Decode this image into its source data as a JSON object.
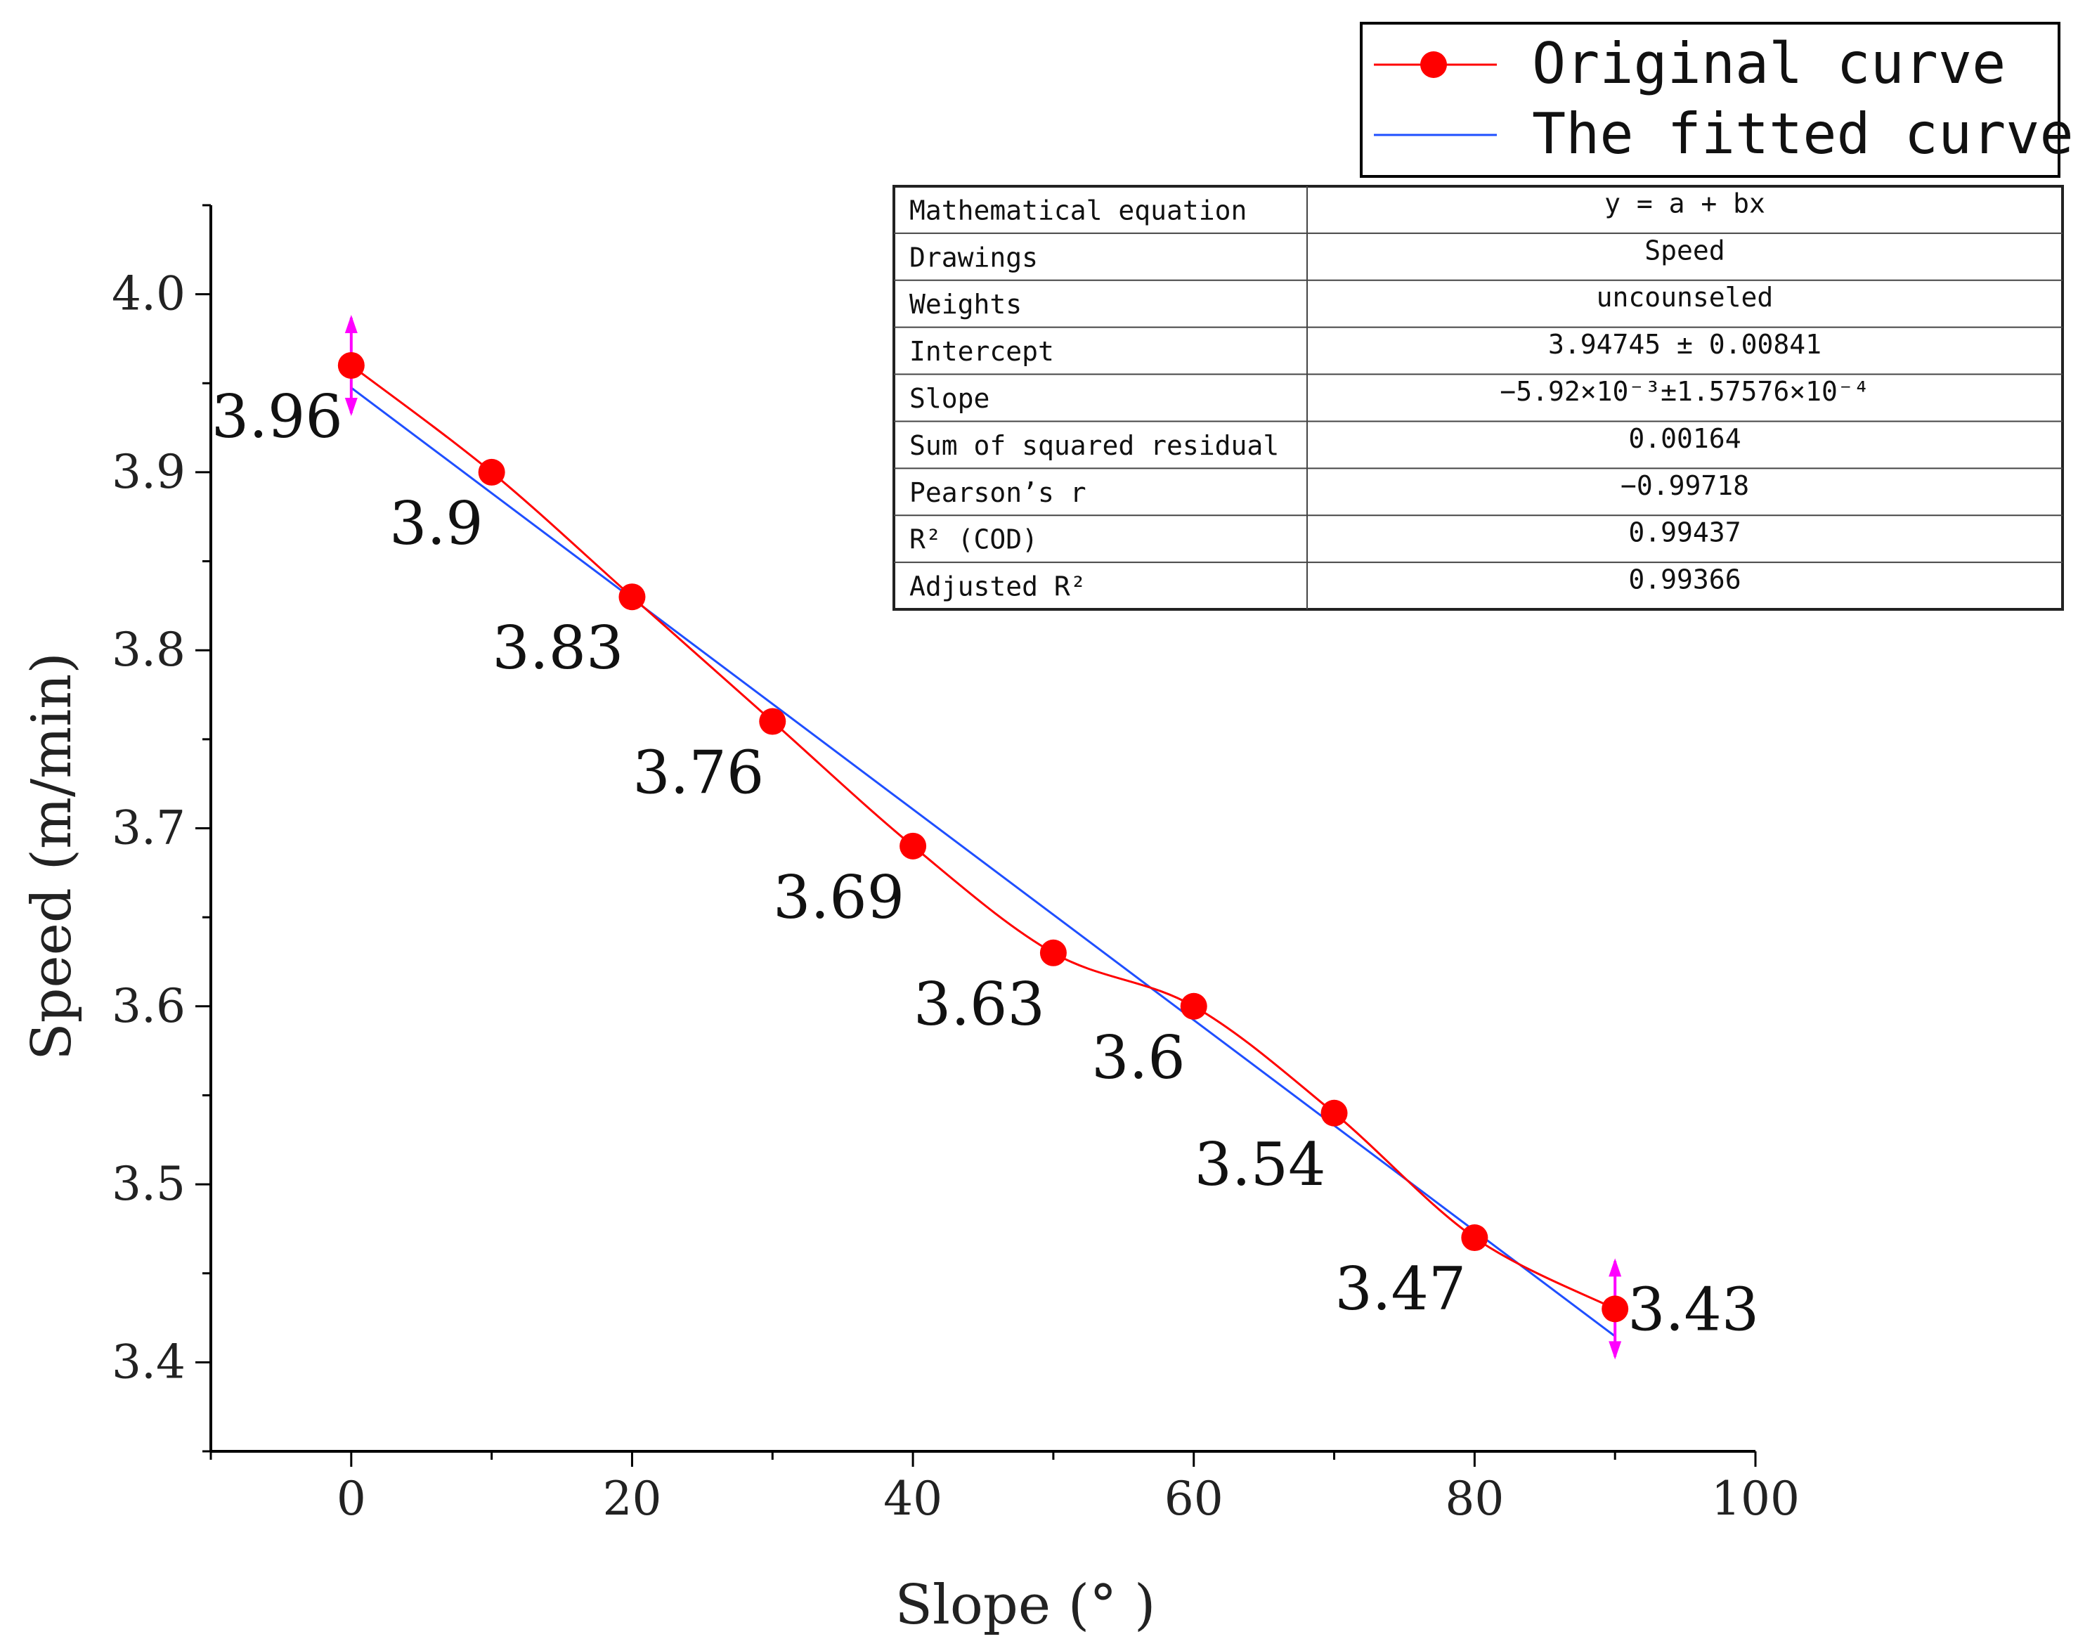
{
  "chart_data": {
    "type": "line",
    "xlabel": "Slope (° )",
    "ylabel": "Speed (m/min)",
    "xlim": [
      -10,
      100
    ],
    "ylim": [
      3.35,
      4.05
    ],
    "xticks": [
      0,
      20,
      40,
      60,
      80,
      100
    ],
    "xtick_labels": [
      "0",
      "20",
      "40",
      "60",
      "80",
      "100"
    ],
    "yticks": [
      3.4,
      3.5,
      3.6,
      3.7,
      3.8,
      3.9,
      4.0
    ],
    "ytick_labels": [
      "3.4",
      "3.5",
      "3.6",
      "3.7",
      "3.8",
      "3.9",
      "4.0"
    ],
    "series": [
      {
        "name": "Original curve",
        "color": "#ff0000",
        "marker": "circle",
        "x": [
          0,
          10,
          20,
          30,
          40,
          50,
          60,
          70,
          80,
          90
        ],
        "values": [
          3.96,
          3.9,
          3.83,
          3.76,
          3.69,
          3.63,
          3.6,
          3.54,
          3.47,
          3.43
        ],
        "labels": [
          "3.96",
          "3.9",
          "3.83",
          "3.76",
          "3.69",
          "3.63",
          "3.6",
          "3.54",
          "3.47",
          "3.43"
        ]
      },
      {
        "name": "The fitted curve",
        "color": "#1f4fff",
        "intercept": 3.94745,
        "slope": -0.00592,
        "x_range": [
          0,
          90
        ]
      }
    ],
    "legend": {
      "position": "top-right",
      "items": [
        "Original curve",
        "The fitted curve"
      ]
    },
    "fit_table": {
      "position": "top-right",
      "rows": [
        [
          "Mathematical equation",
          "y = a + bx"
        ],
        [
          "Drawings",
          "Speed"
        ],
        [
          "Weights",
          "uncounseled"
        ],
        [
          "Intercept",
          "3.94745 ± 0.00841"
        ],
        [
          "Slope",
          "−5.92×10⁻³±1.57576×10⁻⁴"
        ],
        [
          "Sum of squared residual",
          "0.00164"
        ],
        [
          "Pearson’s r",
          "−0.99718"
        ],
        [
          "R² (COD)",
          "0.99437"
        ],
        [
          "Adjusted R²",
          "0.99366"
        ]
      ]
    },
    "endpoint_marker_color": "#ff00ff"
  }
}
